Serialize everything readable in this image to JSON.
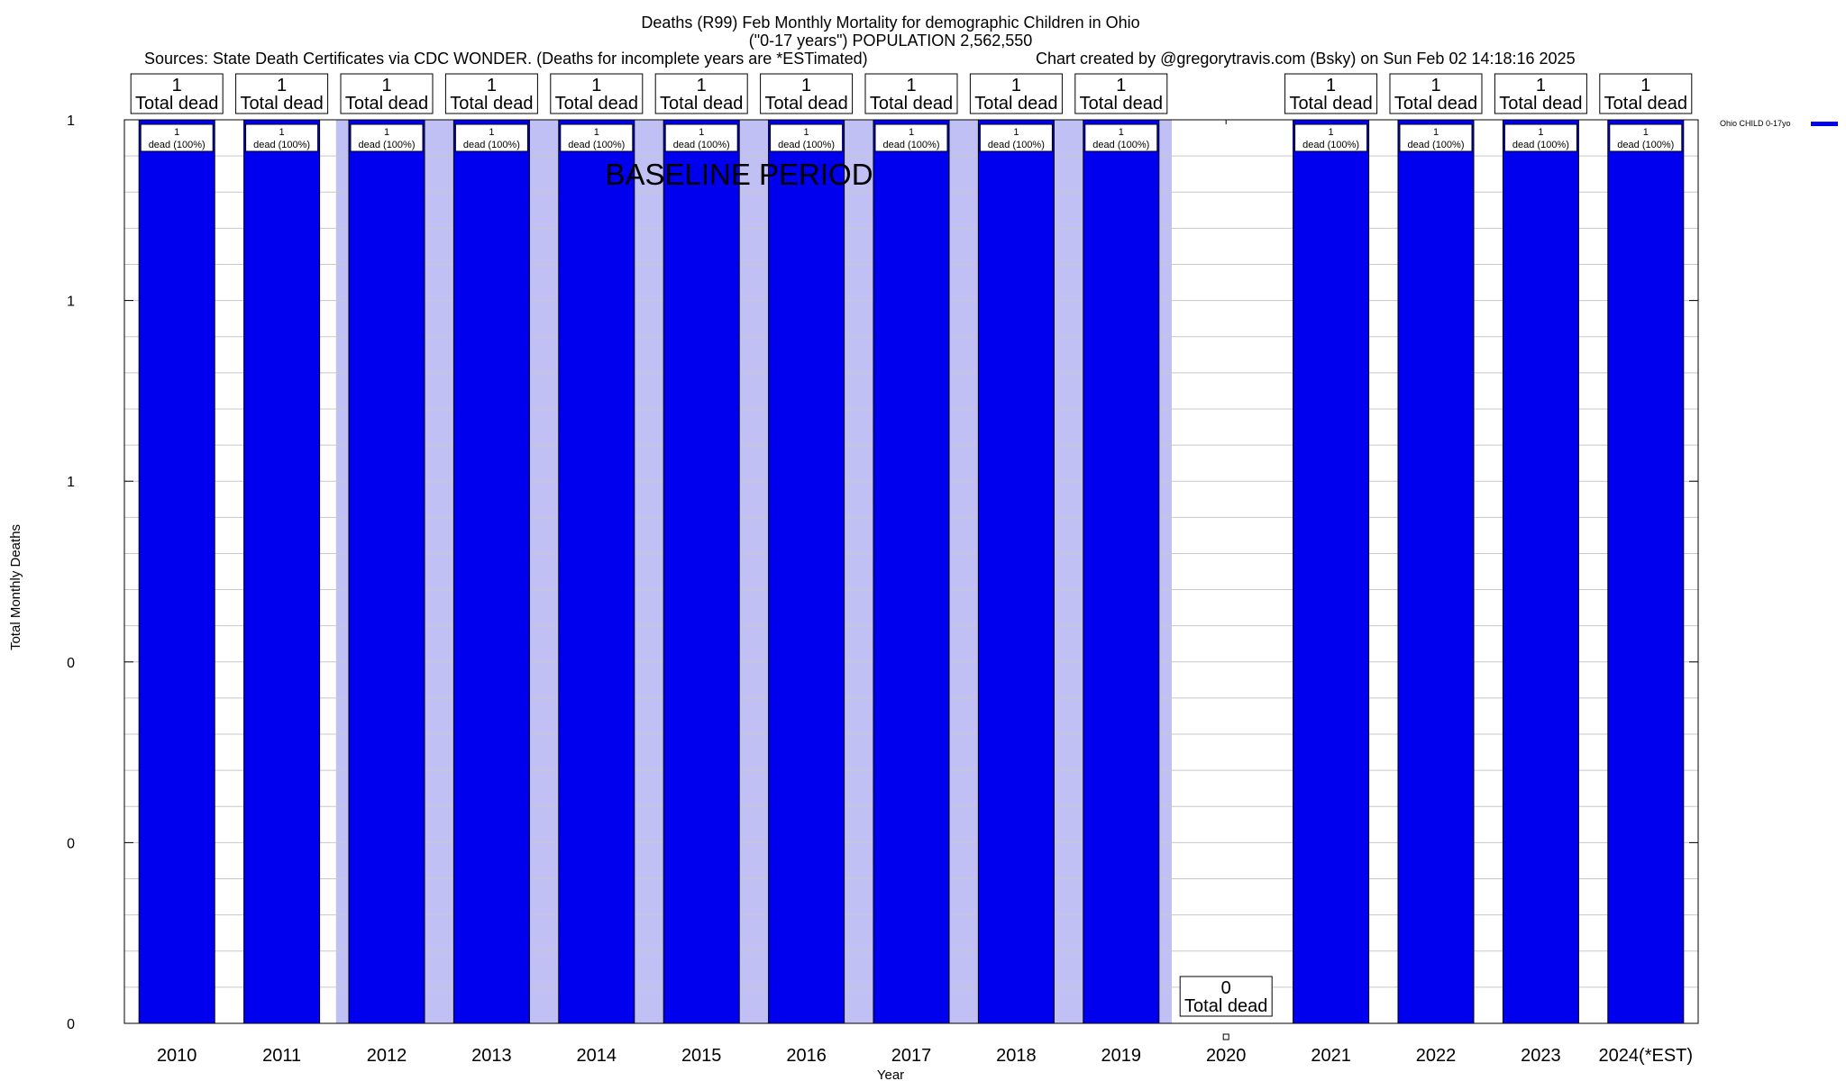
{
  "chart_data": {
    "type": "bar",
    "title": "Deaths (R99) Feb Monthly Mortality for demographic Children in Ohio",
    "subtitle": "(\"0-17 years\") POPULATION 2,562,550",
    "sources": "Sources: State Death Certificates via CDC WONDER. (Deaths for incomplete years are *ESTimated)",
    "credit": "Chart created by @gregorytravis.com (Bsky) on Sun Feb 02 14:18:16 2025",
    "xlabel": "Year",
    "ylabel": "Total Monthly Deaths",
    "ylim": [
      0,
      1
    ],
    "yticks": [
      {
        "value": 0,
        "label": "0"
      },
      {
        "value": 0.2,
        "label": "0"
      },
      {
        "value": 0.4,
        "label": "0"
      },
      {
        "value": 0.6,
        "label": "1"
      },
      {
        "value": 0.8,
        "label": "1"
      },
      {
        "value": 1,
        "label": "1"
      }
    ],
    "grid": true,
    "categories": [
      "2010",
      "2011",
      "2012",
      "2013",
      "2014",
      "2015",
      "2016",
      "2017",
      "2018",
      "2019",
      "2020",
      "2021",
      "2022",
      "2023",
      "2024(*EST)"
    ],
    "series": [
      {
        "name": "Ohio CHILD 0-17yo",
        "color": "#0000ee",
        "values": [
          1,
          1,
          1,
          1,
          1,
          1,
          1,
          1,
          1,
          1,
          0,
          1,
          1,
          1,
          1
        ]
      }
    ],
    "total_labels": [
      "1",
      "1",
      "1",
      "1",
      "1",
      "1",
      "1",
      "1",
      "1",
      "1",
      "0",
      "1",
      "1",
      "1",
      "1"
    ],
    "total_suffix": "Total dead",
    "inner_labels": [
      "1",
      "1",
      "1",
      "1",
      "1",
      "1",
      "1",
      "1",
      "1",
      "1",
      "",
      "1",
      "1",
      "1",
      "1"
    ],
    "inner_suffix": "dead (100%)",
    "baseline_period": {
      "label": "BASELINE PERIOD",
      "from": "2012",
      "to": "2019",
      "color": "#c0c0f5"
    },
    "legend": {
      "label": "Ohio CHILD 0-17yo",
      "placement": "top-right",
      "color": "#0000ee"
    }
  }
}
